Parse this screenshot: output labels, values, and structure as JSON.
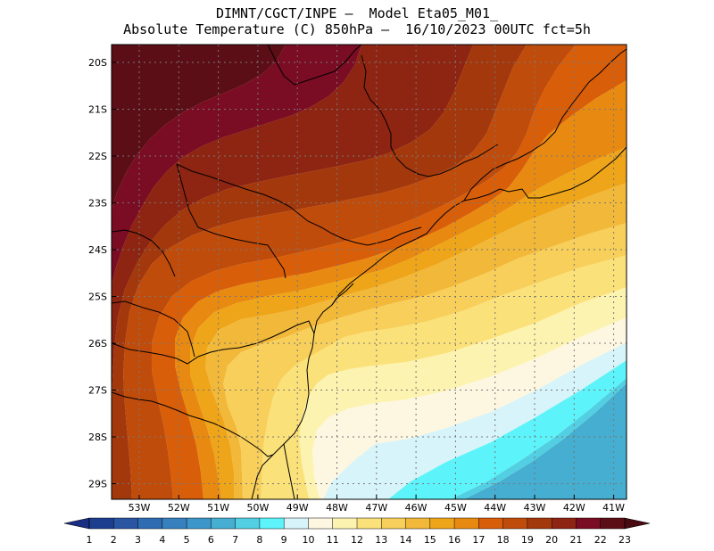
{
  "header": {
    "line1": "DIMNT/CGCT/INPE –  Model Eta05_M01_",
    "line2": "Absolute Temperature (C) 850hPa –  16/10/2023 00UTC fct=5h"
  },
  "map": {
    "field": "Absolute Temperature (C) 850hPa",
    "lat_labels": [
      "20S",
      "21S",
      "22S",
      "23S",
      "24S",
      "25S",
      "26S",
      "27S",
      "28S",
      "29S"
    ],
    "lon_labels": [
      "53W",
      "52W",
      "51W",
      "50W",
      "49W",
      "48W",
      "47W",
      "46W",
      "45W",
      "44W",
      "43W",
      "42W",
      "41W"
    ],
    "bands": [
      {
        "t": 23,
        "color": "#5c0e16"
      },
      {
        "t": 22,
        "color": "#7a0c24"
      },
      {
        "t": 21,
        "color": "#8e2412"
      },
      {
        "t": 20,
        "color": "#a3380d"
      },
      {
        "t": 19,
        "color": "#c04c0c"
      },
      {
        "t": 18,
        "color": "#d85e0a"
      },
      {
        "t": 17,
        "color": "#e88a12"
      },
      {
        "t": 16,
        "color": "#efa51a"
      },
      {
        "t": 15,
        "color": "#f2b83a"
      },
      {
        "t": 14,
        "color": "#f7cf5a"
      },
      {
        "t": 13,
        "color": "#fbe17a"
      },
      {
        "t": 12,
        "color": "#fdf3b0"
      },
      {
        "t": 11,
        "color": "#fdf7e2"
      },
      {
        "t": 10,
        "color": "#d8f4fb"
      },
      {
        "t": 9,
        "color": "#5cf4fa"
      },
      {
        "t": 8,
        "color": "#52cfe3"
      },
      {
        "t": 7,
        "color": "#45aed1"
      }
    ]
  },
  "colorbar": {
    "labels": [
      "1",
      "2",
      "3",
      "4",
      "5",
      "6",
      "7",
      "8",
      "9",
      "10",
      "11",
      "12",
      "13",
      "14",
      "15",
      "16",
      "17",
      "18",
      "19",
      "20",
      "21",
      "22",
      "23"
    ],
    "colors": [
      "#1d3d8f",
      "#2a55a2",
      "#2f6cb1",
      "#3681be",
      "#3c96c9",
      "#45aed1",
      "#52cfe3",
      "#5cf4fa",
      "#d8f4fb",
      "#fdf7e2",
      "#fdf3b0",
      "#fbe17a",
      "#f7cf5a",
      "#f2b83a",
      "#efa51a",
      "#e88a12",
      "#d85e0a",
      "#c04c0c",
      "#a3380d",
      "#8e2412",
      "#7a0c24",
      "#5c0e16"
    ]
  }
}
